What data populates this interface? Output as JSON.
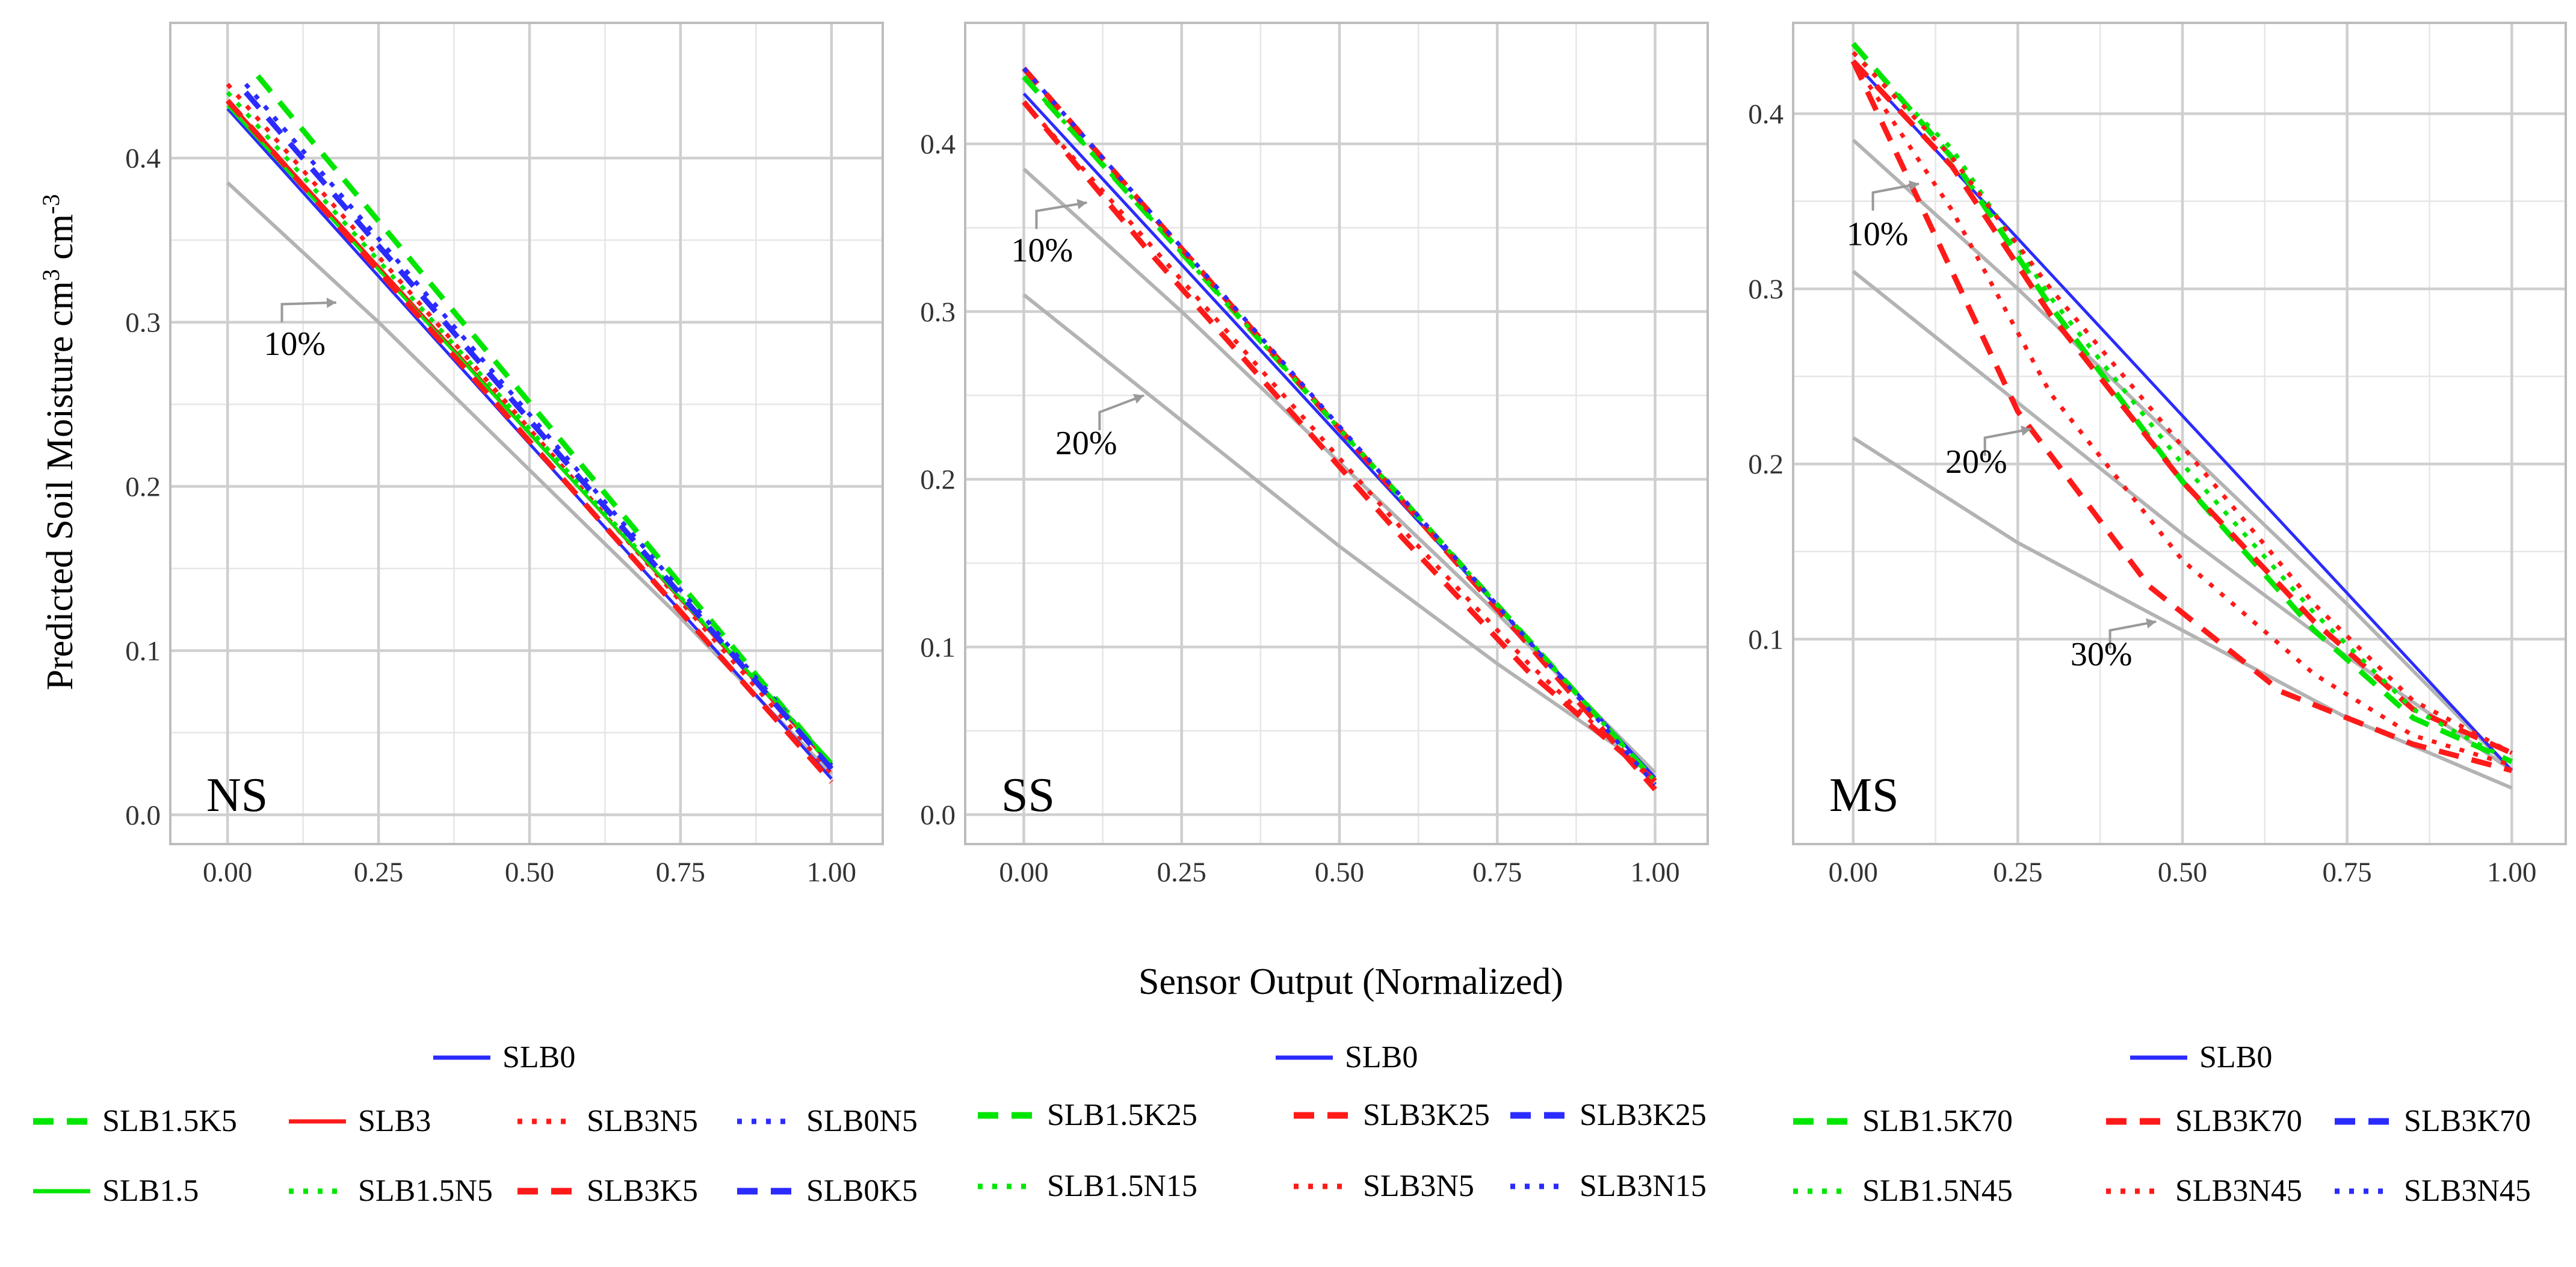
{
  "chart_data": {
    "type": "line",
    "ylabel": "Predicted Soil Moisture cm³ cm⁻³",
    "ylabel_parts": [
      "Predicted Soil Moisture cm",
      "3",
      " cm",
      "-3"
    ],
    "xlabel": "Sensor Output (Normalized)",
    "x_ticks": [
      "0.00",
      "0.25",
      "0.50",
      "0.75",
      "1.00"
    ],
    "colors": {
      "SLB0": "#2b2bff",
      "SLB1.5": "#00e600",
      "SLB3": "#ff1a1a",
      "reference": "#b3b3b3"
    },
    "panels": [
      {
        "label": "NS",
        "xlim": [
          -0.05,
          1.05
        ],
        "ylim": [
          -0.005,
          0.475
        ],
        "y_ticks": [
          0.0,
          0.1,
          0.2,
          0.3,
          0.4
        ],
        "y_tick_labels": [
          "0.0",
          "0.1",
          "0.2",
          "0.3",
          "0.4"
        ],
        "reference_lines": [
          {
            "name": "10%",
            "points": [
              [
                0.0,
                0.385
              ],
              [
                0.25,
                0.3
              ],
              [
                0.5,
                0.21
              ],
              [
                0.75,
                0.12
              ],
              [
                1.0,
                0.025
              ]
            ],
            "annotation": {
              "text": "10%",
              "text_at": [
                0.06,
                0.28
              ],
              "arrow_from": [
                0.09,
                0.311
              ],
              "arrow_to": [
                0.18,
                0.312
              ]
            }
          }
        ],
        "series": [
          {
            "name": "SLB0",
            "x": [
              0.0,
              1.0
            ],
            "y": [
              0.43,
              0.022
            ]
          },
          {
            "name": "SLB1.5K5",
            "x": [
              0.05,
              1.0
            ],
            "y": [
              0.45,
              0.03
            ]
          },
          {
            "name": "SLB3",
            "x": [
              0.0,
              1.0
            ],
            "y": [
              0.435,
              0.03
            ]
          },
          {
            "name": "SLB3N5",
            "x": [
              0.0,
              1.0
            ],
            "y": [
              0.445,
              0.025
            ]
          },
          {
            "name": "SLB0N5",
            "x": [
              0.03,
              1.0
            ],
            "y": [
              0.445,
              0.03
            ]
          },
          {
            "name": "SLB1.5",
            "x": [
              0.0,
              1.0
            ],
            "y": [
              0.432,
              0.032
            ]
          },
          {
            "name": "SLB1.5N5",
            "x": [
              0.0,
              1.0
            ],
            "y": [
              0.44,
              0.03
            ]
          },
          {
            "name": "SLB3K5",
            "x": [
              0.0,
              1.0
            ],
            "y": [
              0.435,
              0.02
            ]
          },
          {
            "name": "SLB0K5",
            "x": [
              0.03,
              1.0
            ],
            "y": [
              0.44,
              0.028
            ]
          }
        ],
        "legend": {
          "columns": [
            "SLB0",
            "SLB1.5K5",
            "SLB3",
            "SLB3N5",
            "SLB0N5",
            "SLB1.5",
            "SLB1.5N5",
            "SLB3K5",
            "SLB0K5"
          ]
        }
      },
      {
        "label": "SS",
        "xlim": [
          -0.05,
          1.05
        ],
        "ylim": [
          -0.005,
          0.465
        ],
        "y_ticks": [
          0.0,
          0.1,
          0.2,
          0.3,
          0.4
        ],
        "y_tick_labels": [
          "0.0",
          "0.1",
          "0.2",
          "0.3",
          "0.4"
        ],
        "reference_lines": [
          {
            "name": "10%",
            "points": [
              [
                0.0,
                0.385
              ],
              [
                0.25,
                0.3
              ],
              [
                0.5,
                0.21
              ],
              [
                0.75,
                0.12
              ],
              [
                1.0,
                0.025
              ]
            ],
            "annotation": {
              "text": "10%",
              "text_at": [
                -0.02,
                0.33
              ],
              "arrow_from": [
                0.02,
                0.36
              ],
              "arrow_to": [
                0.1,
                0.365
              ]
            }
          },
          {
            "name": "20%",
            "points": [
              [
                0.0,
                0.31
              ],
              [
                0.25,
                0.235
              ],
              [
                0.5,
                0.16
              ],
              [
                0.75,
                0.09
              ],
              [
                1.0,
                0.025
              ]
            ],
            "annotation": {
              "text": "20%",
              "text_at": [
                0.05,
                0.215
              ],
              "arrow_from": [
                0.12,
                0.24
              ],
              "arrow_to": [
                0.19,
                0.25
              ]
            }
          }
        ],
        "series": [
          {
            "name": "SLB0",
            "x": [
              0.0,
              1.0
            ],
            "y": [
              0.43,
              0.022
            ]
          },
          {
            "name": "SLB1.5K25",
            "x": [
              0.0,
              1.0
            ],
            "y": [
              0.44,
              0.02
            ]
          },
          {
            "name": "SLB3K25",
            "x": [
              0.0,
              0.2,
              0.4,
              0.6,
              0.8,
              1.0
            ],
            "y": [
              0.425,
              0.335,
              0.25,
              0.165,
              0.085,
              0.02
            ]
          },
          {
            "name": "SLB3K25",
            "x": [
              0.0,
              1.0
            ],
            "y": [
              0.445,
              0.015
            ]
          },
          {
            "name": "SLB1.5N15",
            "x": [
              0.0,
              1.0
            ],
            "y": [
              0.44,
              0.02
            ]
          },
          {
            "name": "SLB3N5",
            "x": [
              0.0,
              0.2,
              0.4,
              0.6,
              0.8,
              1.0
            ],
            "y": [
              0.425,
              0.34,
              0.255,
              0.17,
              0.09,
              0.02
            ]
          },
          {
            "name": "SLB3N15",
            "x": [
              0.0,
              1.0
            ],
            "y": [
              0.445,
              0.018
            ]
          }
        ],
        "legend": {
          "columns": [
            "SLB0",
            "SLB1.5K25",
            "SLB3K25",
            "SLB3K25",
            "SLB1.5N15",
            "SLB3N5",
            "SLB3N15"
          ]
        }
      },
      {
        "label": "MS",
        "xlim": [
          -0.05,
          1.05
        ],
        "ylim": [
          -0.005,
          0.445
        ],
        "y_ticks": [
          0.1,
          0.2,
          0.3,
          0.4
        ],
        "y_tick_labels": [
          "0.1",
          "0.2",
          "0.3",
          "0.4"
        ],
        "reference_lines": [
          {
            "name": "10%",
            "points": [
              [
                0.0,
                0.385
              ],
              [
                0.25,
                0.3
              ],
              [
                0.5,
                0.21
              ],
              [
                0.75,
                0.12
              ],
              [
                1.0,
                0.025
              ]
            ],
            "annotation": {
              "text": "10%",
              "text_at": [
                -0.01,
                0.325
              ],
              "arrow_from": [
                0.03,
                0.355
              ],
              "arrow_to": [
                0.1,
                0.36
              ]
            }
          },
          {
            "name": "20%",
            "points": [
              [
                0.0,
                0.31
              ],
              [
                0.25,
                0.235
              ],
              [
                0.5,
                0.16
              ],
              [
                0.75,
                0.09
              ],
              [
                1.0,
                0.025
              ]
            ],
            "annotation": {
              "text": "20%",
              "text_at": [
                0.14,
                0.195
              ],
              "arrow_from": [
                0.2,
                0.215
              ],
              "arrow_to": [
                0.27,
                0.22
              ]
            }
          },
          {
            "name": "30%",
            "points": [
              [
                0.0,
                0.215
              ],
              [
                0.25,
                0.155
              ],
              [
                0.5,
                0.105
              ],
              [
                0.75,
                0.055
              ],
              [
                1.0,
                0.015
              ]
            ],
            "annotation": {
              "text": "30%",
              "text_at": [
                0.33,
                0.085
              ],
              "arrow_from": [
                0.39,
                0.105
              ],
              "arrow_to": [
                0.46,
                0.11
              ]
            }
          }
        ],
        "series": [
          {
            "name": "SLB0",
            "x": [
              0.0,
              1.0
            ],
            "y": [
              0.43,
              0.025
            ]
          },
          {
            "name": "SLB1.5K70",
            "x": [
              0.0,
              0.15,
              0.3,
              0.5,
              0.7,
              0.85,
              1.0
            ],
            "y": [
              0.44,
              0.375,
              0.29,
              0.19,
              0.105,
              0.055,
              0.03
            ]
          },
          {
            "name": "SLB3K70",
            "x": [
              0.0,
              0.1,
              0.25,
              0.45,
              0.65,
              0.85,
              1.0
            ],
            "y": [
              0.43,
              0.35,
              0.23,
              0.13,
              0.07,
              0.04,
              0.025
            ]
          },
          {
            "name": "SLB3K70",
            "x": [
              0.0,
              0.15,
              0.3,
              0.5,
              0.7,
              0.85,
              1.0
            ],
            "y": [
              0.43,
              0.37,
              0.285,
              0.19,
              0.11,
              0.06,
              0.035
            ]
          },
          {
            "name": "SLB1.5N45",
            "x": [
              0.0,
              0.15,
              0.3,
              0.5,
              0.7,
              0.85,
              1.0
            ],
            "y": [
              0.435,
              0.38,
              0.295,
              0.2,
              0.115,
              0.06,
              0.03
            ]
          },
          {
            "name": "SLB3N45",
            "x": [
              0.0,
              0.15,
              0.3,
              0.5,
              0.7,
              0.85,
              1.0
            ],
            "y": [
              0.43,
              0.345,
              0.24,
              0.145,
              0.08,
              0.045,
              0.028
            ]
          },
          {
            "name": "SLB3N45",
            "x": [
              0.0,
              0.15,
              0.3,
              0.5,
              0.7,
              0.85,
              1.0
            ],
            "y": [
              0.435,
              0.375,
              0.3,
              0.21,
              0.12,
              0.065,
              0.035
            ]
          }
        ],
        "legend": {
          "columns": [
            "SLB0",
            "SLB1.5K70",
            "SLB3K70",
            "SLB3K70",
            "SLB1.5N45",
            "SLB3N45",
            "SLB3N45"
          ]
        }
      }
    ],
    "styles": {
      "SLB0": {
        "color": "SLB0",
        "dash": "solid"
      },
      "SLB1.5": {
        "color": "SLB1.5",
        "dash": "solid"
      },
      "SLB3": {
        "color": "SLB3",
        "dash": "solid"
      },
      "SLB1.5K5": {
        "color": "SLB1.5",
        "dash": "dashed"
      },
      "SLB3K5": {
        "color": "SLB3",
        "dash": "dashed"
      },
      "SLB0K5": {
        "color": "SLB0",
        "dash": "dashed"
      },
      "SLB3N5": {
        "color": "SLB3",
        "dash": "dotted"
      },
      "SLB0N5": {
        "color": "SLB0",
        "dash": "dotted"
      },
      "SLB1.5N5": {
        "color": "SLB1.5",
        "dash": "dotted"
      },
      "SLB1.5K25": {
        "color": "SLB1.5",
        "dash": "dashed"
      },
      "SLB3K25": {
        "color": "SLB3",
        "dash": "dashed"
      },
      "SLB1.5N15": {
        "color": "SLB1.5",
        "dash": "dotted"
      },
      "SLB3N15": {
        "color": "SLB0",
        "dash": "dotted"
      },
      "SLB1.5K70": {
        "color": "SLB1.5",
        "dash": "dashed"
      },
      "SLB3K70": {
        "color": "SLB3",
        "dash": "dashed"
      },
      "SLB1.5N45": {
        "color": "SLB1.5",
        "dash": "dotted"
      },
      "SLB3N45": {
        "color": "SLB3",
        "dash": "dotted"
      }
    },
    "legend_rows": [
      [
        {
          "label": "SLB0",
          "color": "SLB0",
          "dash": "solid"
        }
      ],
      [
        {
          "label": "SLB1.5K5",
          "color": "SLB1.5",
          "dash": "dashed"
        },
        {
          "label": "SLB3",
          "color": "SLB3",
          "dash": "solid"
        },
        {
          "label": "SLB3N5",
          "color": "SLB3",
          "dash": "dotted"
        },
        {
          "label": "SLB0N5",
          "color": "SLB0",
          "dash": "dotted"
        }
      ],
      [
        {
          "label": "SLB1.5",
          "color": "SLB1.5",
          "dash": "solid"
        },
        {
          "label": "SLB1.5N5",
          "color": "SLB1.5",
          "dash": "dotted"
        },
        {
          "label": "SLB3K5",
          "color": "SLB3",
          "dash": "dashed"
        },
        {
          "label": "SLB0K5",
          "color": "SLB0",
          "dash": "dashed"
        }
      ]
    ],
    "legend_groups": [
      {
        "panel": "NS",
        "rows": [
          [
            {
              "label": "SLB0",
              "color": "SLB0",
              "dash": "solid"
            }
          ],
          [
            {
              "label": "SLB1.5K5",
              "color": "SLB1.5",
              "dash": "dashed"
            },
            {
              "label": "SLB3",
              "color": "SLB3",
              "dash": "solid"
            },
            {
              "label": "SLB3N5",
              "color": "SLB3",
              "dash": "dotted"
            },
            {
              "label": "SLB0N5",
              "color": "SLB0",
              "dash": "dotted"
            }
          ],
          [
            {
              "label": "SLB1.5",
              "color": "SLB1.5",
              "dash": "solid"
            },
            {
              "label": "SLB1.5N5",
              "color": "SLB1.5",
              "dash": "dotted"
            },
            {
              "label": "SLB3K5",
              "color": "SLB3",
              "dash": "dashed"
            },
            {
              "label": "SLB0K5",
              "color": "SLB0",
              "dash": "dashed"
            }
          ]
        ]
      },
      {
        "panel": "SS",
        "rows": [
          [
            {
              "label": "SLB0",
              "color": "SLB0",
              "dash": "solid"
            }
          ],
          [
            {
              "label": "SLB1.5K25",
              "color": "SLB1.5",
              "dash": "dashed"
            },
            {
              "label": "SLB3K25",
              "color": "SLB3",
              "dash": "dashed"
            },
            {
              "label": "SLB3K25",
              "color": "SLB0",
              "dash": "dashed"
            }
          ],
          [
            {
              "label": "SLB1.5N15",
              "color": "SLB1.5",
              "dash": "dotted"
            },
            {
              "label": "SLB3N5",
              "color": "SLB3",
              "dash": "dotted"
            },
            {
              "label": "SLB3N15",
              "color": "SLB0",
              "dash": "dotted"
            }
          ]
        ]
      },
      {
        "panel": "MS",
        "rows": [
          [
            {
              "label": "SLB0",
              "color": "SLB0",
              "dash": "solid"
            }
          ],
          [
            {
              "label": "SLB1.5K70",
              "color": "SLB1.5",
              "dash": "dashed"
            },
            {
              "label": "SLB3K70",
              "color": "SLB3",
              "dash": "dashed"
            },
            {
              "label": "SLB3K70",
              "color": "SLB0",
              "dash": "dashed"
            }
          ],
          [
            {
              "label": "SLB1.5N45",
              "color": "SLB1.5",
              "dash": "dotted"
            },
            {
              "label": "SLB3N45",
              "color": "SLB3",
              "dash": "dotted"
            },
            {
              "label": "SLB3N45",
              "color": "SLB0",
              "dash": "dotted"
            }
          ]
        ]
      }
    ]
  }
}
